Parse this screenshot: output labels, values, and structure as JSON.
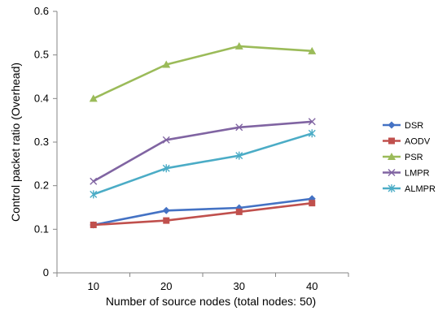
{
  "chart_data": {
    "type": "line",
    "xlabel": "Number of source nodes (total nodes: 50)",
    "ylabel": "Control packet ratio (Overhead)",
    "x": [
      10,
      20,
      30,
      40
    ],
    "x_tick_labels": [
      "10",
      "20",
      "30",
      "40"
    ],
    "ylim": [
      0,
      0.6
    ],
    "y_ticks": [
      0,
      0.1,
      0.2,
      0.3,
      0.4,
      0.5,
      0.6
    ],
    "y_tick_labels": [
      "0",
      "0.1",
      "0.2",
      "0.3",
      "0.4",
      "0.5",
      "0.6"
    ],
    "grid": false,
    "legend_position": "right",
    "series": [
      {
        "name": "DSR",
        "values": [
          0.11,
          0.143,
          0.149,
          0.17
        ],
        "color": "#4472C4",
        "marker": "diamond"
      },
      {
        "name": "AODV",
        "values": [
          0.11,
          0.12,
          0.14,
          0.16
        ],
        "color": "#C0504D",
        "marker": "square"
      },
      {
        "name": "PSR",
        "values": [
          0.4,
          0.478,
          0.52,
          0.509
        ],
        "color": "#9BBB59",
        "marker": "triangle"
      },
      {
        "name": "LMPR",
        "values": [
          0.21,
          0.305,
          0.334,
          0.347
        ],
        "color": "#8064A2",
        "marker": "x"
      },
      {
        "name": "ALMPR",
        "values": [
          0.18,
          0.24,
          0.269,
          0.32
        ],
        "color": "#4BACC6",
        "marker": "star"
      }
    ]
  }
}
